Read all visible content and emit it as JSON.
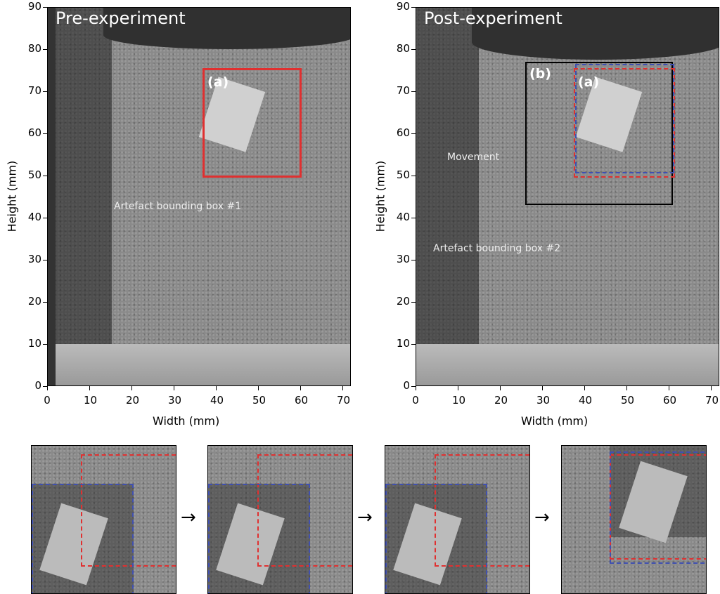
{
  "panels": [
    {
      "title": "Pre-experiment",
      "xlabel": "Width (mm)",
      "ylabel": "Height (mm)",
      "annotation": "Artefact bounding box #1",
      "box_labels": [
        "(a)"
      ]
    },
    {
      "title": "Post-experiment",
      "xlabel": "Width (mm)",
      "ylabel": "Height (mm)",
      "annotation": "Artefact bounding box #2",
      "movement": "Movement",
      "box_labels": [
        "(b)",
        "(a)"
      ]
    }
  ],
  "xticks": [
    "0",
    "10",
    "20",
    "30",
    "40",
    "50",
    "60",
    "70"
  ],
  "yticks": [
    "0",
    "10",
    "20",
    "30",
    "40",
    "50",
    "60",
    "70",
    "80",
    "90"
  ],
  "axis_range": {
    "x": [
      0,
      72
    ],
    "y": [
      0,
      90
    ]
  },
  "colors": {
    "box_a": "#e03030",
    "box_b": "#000000",
    "box_blue": "#4050b0"
  },
  "sequence_arrow": "→"
}
